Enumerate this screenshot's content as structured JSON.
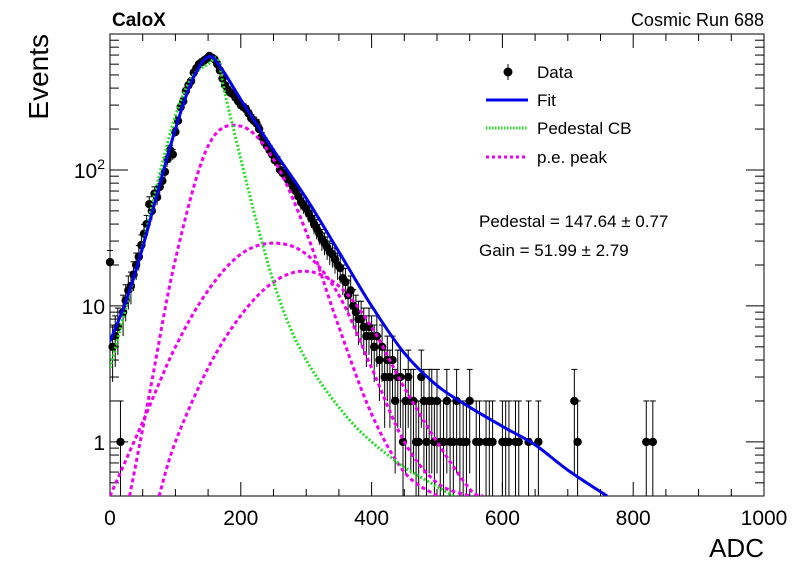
{
  "header": {
    "left_label": "CaloX",
    "right_label": "Cosmic Run 688"
  },
  "chart_data": {
    "type": "scatter",
    "xlabel": "ADC",
    "ylabel": "Events",
    "xlim": [
      0,
      1000
    ],
    "ylim": [
      0.4,
      1000
    ],
    "ylog": true,
    "x_ticks": [
      "0",
      "200",
      "400",
      "600",
      "800",
      "1000"
    ],
    "y_ticks": [
      {
        "value": 1,
        "base": "1",
        "exp": ""
      },
      {
        "value": 10,
        "base": "10",
        "exp": ""
      },
      {
        "value": 100,
        "base": "10",
        "exp": "2"
      }
    ],
    "legend_position": "top-right",
    "legend": [
      {
        "label": "Data",
        "style": "marker",
        "color": "#000000"
      },
      {
        "label": "Fit",
        "style": "solid",
        "color": "#0000ee"
      },
      {
        "label": "Pedestal CB",
        "style": "dotted",
        "color": "#22dd22"
      },
      {
        "label": "p.e. peak",
        "style": "dashed",
        "color": "#ee00ee"
      }
    ],
    "annotations": {
      "pedestal": "Pedestal = 147.64 ± 0.77",
      "gain": "Gain = 51.99 ± 2.79"
    },
    "fit_params": {
      "pedestal": 147.64,
      "gain": 51.99
    },
    "data": {
      "x": [
        0,
        4,
        8,
        12,
        16,
        20,
        24,
        28,
        32,
        36,
        40,
        44,
        48,
        52,
        56,
        60,
        64,
        68,
        72,
        76,
        80,
        84,
        88,
        92,
        96,
        100,
        104,
        108,
        112,
        116,
        120,
        124,
        128,
        132,
        136,
        140,
        144,
        148,
        152,
        156,
        160,
        164,
        168,
        172,
        176,
        180,
        184,
        188,
        192,
        196,
        200,
        204,
        208,
        212,
        216,
        220,
        224,
        228,
        232,
        236,
        240,
        244,
        248,
        252,
        256,
        260,
        264,
        268,
        272,
        276,
        280,
        284,
        288,
        292,
        296,
        300,
        304,
        308,
        312,
        316,
        320,
        324,
        328,
        332,
        336,
        340,
        344,
        348,
        352,
        356,
        360,
        364,
        368,
        372,
        376,
        380,
        384,
        388,
        392,
        396,
        400,
        404,
        408,
        412,
        416,
        420,
        424,
        428,
        432,
        436,
        440,
        444,
        448,
        452,
        456,
        460,
        464,
        468,
        472,
        476,
        480,
        484,
        488,
        492,
        496,
        500,
        505,
        510,
        515,
        520,
        525,
        530,
        535,
        540,
        545,
        550,
        560,
        565,
        575,
        580,
        585,
        600,
        605,
        610,
        620,
        625,
        640,
        655,
        710,
        715,
        820,
        830
      ],
      "y": [
        21,
        5,
        6,
        7,
        1,
        9,
        11,
        13,
        14,
        17,
        20,
        23,
        28,
        34,
        40,
        56,
        50,
        67,
        63,
        75,
        83,
        97,
        120,
        140,
        130,
        190,
        230,
        290,
        320,
        380,
        420,
        450,
        520,
        560,
        600,
        620,
        640,
        660,
        690,
        670,
        650,
        600,
        540,
        470,
        420,
        390,
        370,
        360,
        340,
        320,
        300,
        290,
        280,
        260,
        240,
        230,
        220,
        200,
        175,
        160,
        150,
        140,
        130,
        118,
        115,
        100,
        95,
        90,
        85,
        80,
        75,
        70,
        64,
        58,
        55,
        52,
        48,
        44,
        40,
        37,
        34,
        31,
        29,
        27,
        25,
        24,
        22,
        20,
        19,
        16,
        15,
        12,
        13,
        10,
        9,
        8,
        8,
        7,
        6,
        7,
        6,
        5,
        6,
        4,
        5,
        3,
        4,
        3,
        4,
        2,
        3,
        3,
        1,
        2,
        3,
        2,
        2,
        1,
        1,
        3,
        2,
        1,
        2,
        2,
        1,
        2,
        1,
        1,
        2,
        1,
        1,
        2,
        1,
        1,
        1,
        2,
        1,
        1,
        1,
        1,
        1,
        1,
        1,
        1,
        1,
        1,
        1,
        1,
        2,
        1,
        1,
        1
      ]
    },
    "curves": {
      "fit": {
        "x": [
          0,
          25,
          50,
          75,
          100,
          125,
          150,
          170,
          200,
          250,
          300,
          350,
          400,
          450,
          500,
          550,
          600,
          650,
          700,
          760
        ],
        "y": [
          5.5,
          11,
          27,
          75,
          200,
          450,
          680,
          560,
          330,
          140,
          62,
          25,
          10,
          4.5,
          2.6,
          1.8,
          1.3,
          0.95,
          0.62,
          0.4
        ]
      },
      "pedestal_cb": {
        "x": [
          0,
          25,
          50,
          75,
          100,
          125,
          150,
          165,
          175,
          200,
          225,
          250,
          275,
          300,
          325,
          350,
          375,
          400,
          425,
          450,
          475,
          500,
          525
        ],
        "y": [
          3.5,
          10,
          28,
          90,
          250,
          480,
          600,
          650,
          380,
          120,
          40,
          15,
          7,
          4,
          2.6,
          1.8,
          1.3,
          1.0,
          0.8,
          0.65,
          0.55,
          0.47,
          0.4
        ]
      },
      "pe_peaks": [
        {
          "x": [
            30,
            60,
            100,
            150,
            200,
            250,
            300,
            350,
            400,
            450,
            500
          ],
          "y": [
            0.4,
            2.2,
            22,
            150,
            210,
            120,
            35,
            7,
            1.6,
            0.6,
            0.4
          ]
        },
        {
          "x": [
            0,
            50,
            100,
            150,
            200,
            250,
            300,
            350,
            400,
            450,
            500,
            550
          ],
          "y": [
            0.4,
            1.4,
            5,
            13,
            24,
            29,
            24,
            12,
            3.5,
            1.0,
            0.5,
            0.4
          ]
        },
        {
          "x": [
            75,
            100,
            150,
            200,
            250,
            300,
            350,
            400,
            450,
            500,
            550,
            570
          ],
          "y": [
            0.4,
            1.0,
            3.5,
            8.5,
            15,
            18,
            14,
            7,
            2.5,
            1.0,
            0.45,
            0.4
          ]
        }
      ]
    }
  }
}
